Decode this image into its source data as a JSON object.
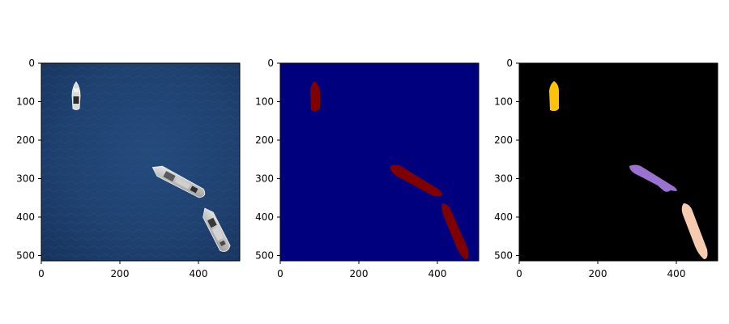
{
  "figure": {
    "panels": [
      {
        "name": "satellite-image",
        "description_type": "aerial-ocean-photo",
        "xticks": [
          "0",
          "200",
          "400"
        ],
        "yticks": [
          "0",
          "100",
          "200",
          "300",
          "400",
          "500"
        ]
      },
      {
        "name": "binary-mask",
        "description_type": "segmentation-mask",
        "xticks": [
          "0",
          "200",
          "400"
        ],
        "yticks": [
          "0",
          "100",
          "200",
          "300",
          "400",
          "500"
        ]
      },
      {
        "name": "instance-mask",
        "description_type": "instance-segmentation",
        "xticks": [
          "0",
          "200",
          "400"
        ],
        "yticks": [
          "0",
          "100",
          "200",
          "300",
          "400",
          "500"
        ]
      }
    ],
    "colors": {
      "ocean": "#1d3d6b",
      "mask_background": "#00007f",
      "mask_foreground": "#7f0000",
      "instance_background": "#000000",
      "instance_1": "#ffc20a",
      "instance_2": "#9a72d0",
      "instance_3": "#f7cbb0"
    }
  }
}
